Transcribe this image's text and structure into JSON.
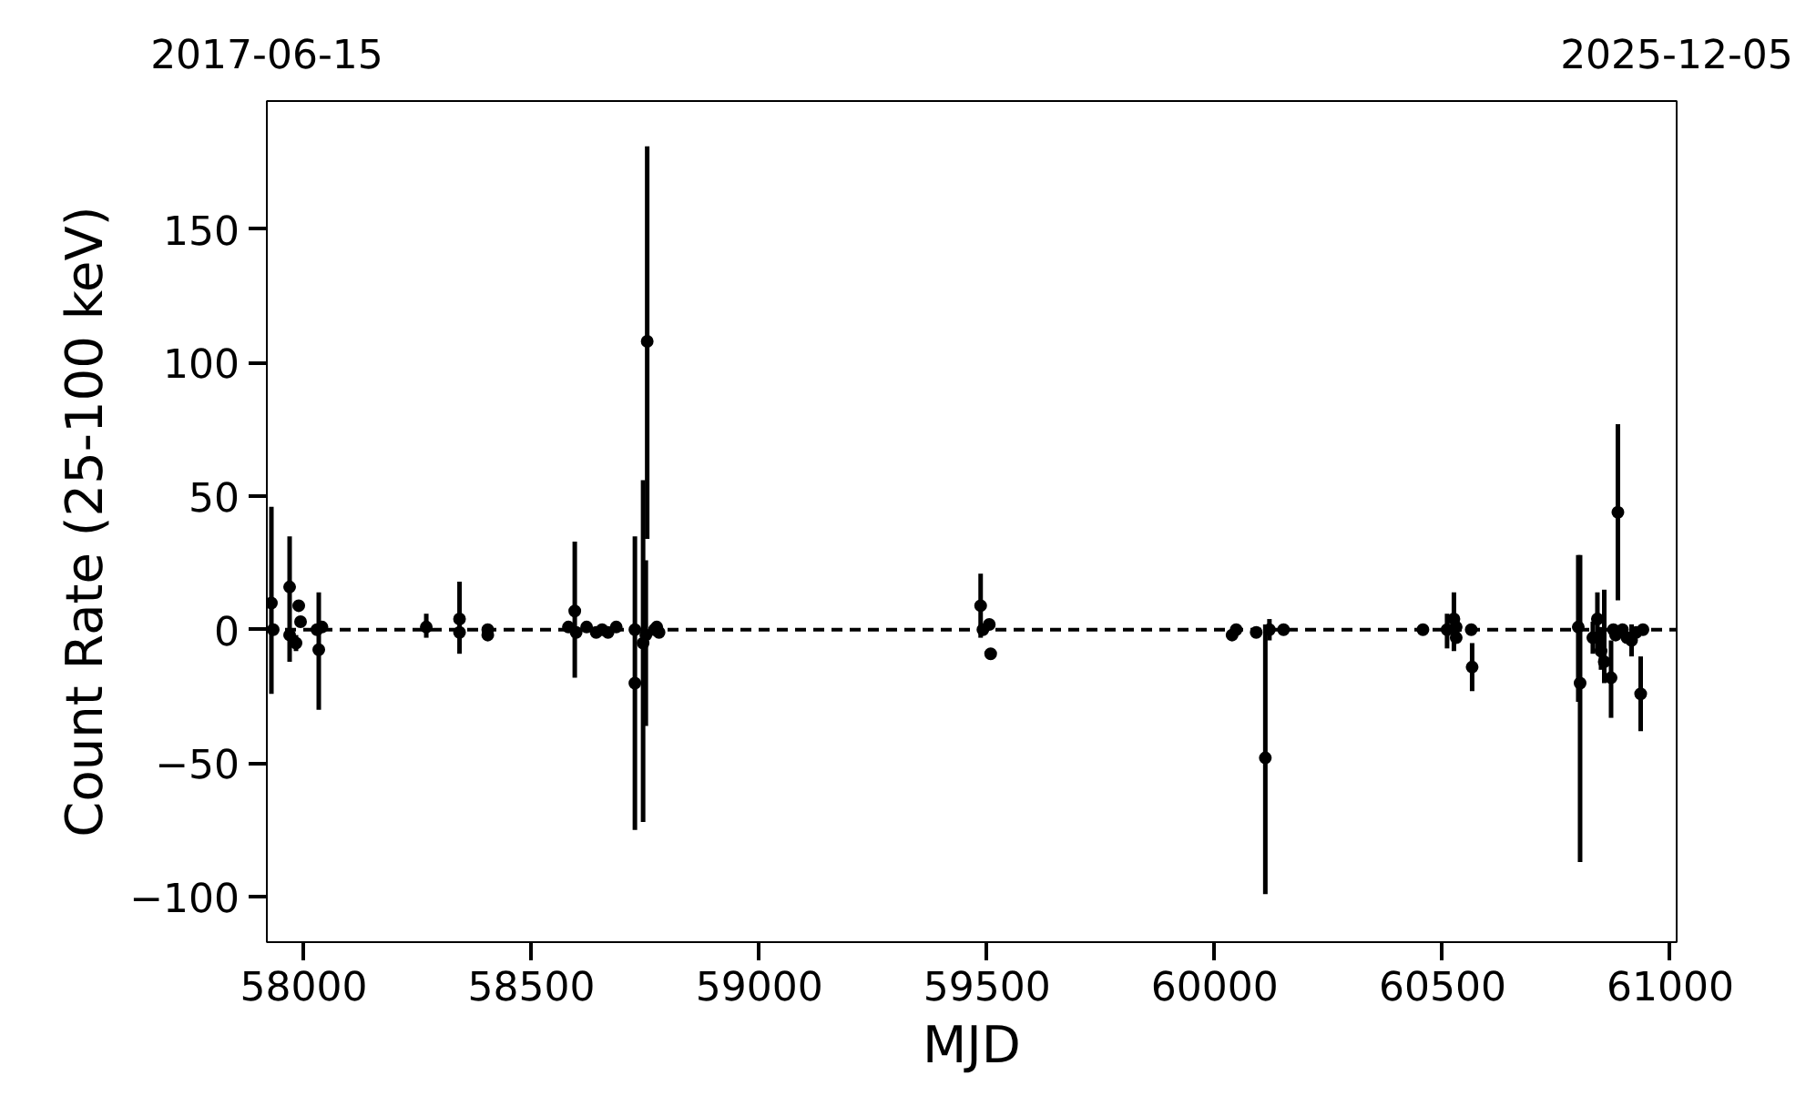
{
  "chart_data": {
    "type": "scatter",
    "xlabel": "MJD",
    "ylabel": "Count Rate (25-100 keV)",
    "annotations": [
      "2017-06-15",
      "2025-12-05"
    ],
    "xlim": [
      57919,
      61014
    ],
    "ylim": [
      -117,
      198
    ],
    "xticks": [
      58000,
      58500,
      59000,
      59500,
      60000,
      60500,
      61000
    ],
    "yticks": [
      -100,
      -50,
      0,
      50,
      100,
      150
    ],
    "grid": false,
    "marker": "circle",
    "ref_lines": [
      {
        "axis": "y",
        "value": 0,
        "color": "#000000",
        "line_style": "dashed"
      }
    ],
    "series": [
      {
        "color": "#000000",
        "x": [
          57929,
          57933,
          57969,
          57969,
          57983,
          57989,
          57993,
          58029,
          58033,
          58040,
          58269,
          58342,
          58342,
          58404,
          58404,
          58581,
          58595,
          58598,
          58621,
          58642,
          58655,
          58668,
          58686,
          58727,
          58727,
          58745,
          58751,
          58754,
          58770,
          58775,
          58780,
          59486,
          59491,
          59505,
          59508,
          60038,
          60047,
          60091,
          60111,
          60120,
          60151,
          60457,
          60510,
          60525,
          60530,
          60530,
          60563,
          60565,
          60798,
          60802,
          60830,
          60840,
          60848,
          60855,
          60870,
          60875,
          60880,
          60885,
          60895,
          60905,
          60915,
          60925,
          60935,
          60940
        ],
        "values": [
          10,
          0,
          16,
          -2,
          -5,
          9,
          3,
          0,
          -7.5,
          1,
          1,
          4,
          -1,
          0,
          -2,
          1,
          7,
          -1,
          1,
          -1,
          0,
          -1,
          1,
          -20,
          0,
          -5,
          -2,
          108,
          0,
          1,
          -1,
          9,
          0,
          2,
          -9,
          -2,
          0,
          -1,
          -48,
          0,
          0,
          0,
          0,
          4,
          1,
          -3,
          0,
          -14,
          1,
          -20,
          -3,
          4,
          -8,
          -12,
          -18,
          0,
          -2,
          44,
          0,
          -3,
          -4,
          -1,
          -24,
          0
        ],
        "errors": [
          [
            -24,
            46
          ],
          null,
          [
            -12,
            35
          ],
          null,
          [
            -8,
            -2
          ],
          null,
          null,
          null,
          [
            -30,
            14
          ],
          null,
          [
            -3,
            6
          ],
          [
            -9,
            18
          ],
          null,
          null,
          null,
          null,
          [
            -18,
            33
          ],
          null,
          null,
          null,
          null,
          null,
          null,
          [
            -75,
            35
          ],
          null,
          [
            -72,
            56
          ],
          [
            -36,
            26
          ],
          [
            34,
            181
          ],
          null,
          null,
          null,
          [
            -3,
            21
          ],
          null,
          null,
          [
            -11,
            -7
          ],
          null,
          null,
          null,
          [
            -99,
            2
          ],
          [
            -4,
            4
          ],
          null,
          null,
          [
            -7,
            6
          ],
          [
            -8,
            14
          ],
          null,
          null,
          null,
          [
            -23,
            -5
          ],
          [
            -27,
            28
          ],
          [
            -87,
            28
          ],
          [
            -9,
            3
          ],
          [
            -8,
            14
          ],
          [
            -15,
            1
          ],
          [
            -20,
            15
          ],
          [
            -33,
            -4
          ],
          null,
          null,
          [
            11,
            77
          ],
          null,
          null,
          [
            -10,
            2
          ],
          null,
          [
            -38,
            -10
          ],
          null
        ]
      }
    ]
  }
}
